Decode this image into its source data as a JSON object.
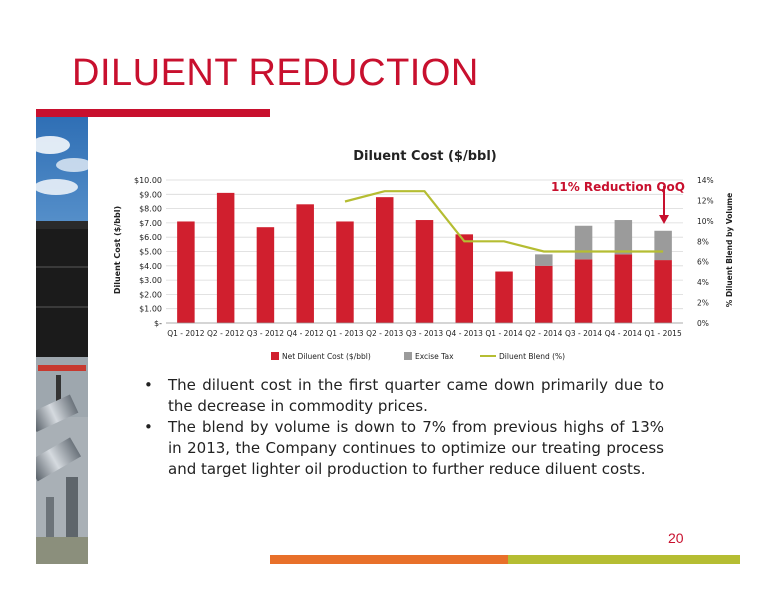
{
  "slide": {
    "title": "DILUENT REDUCTION",
    "page_number": "20",
    "bullets": [
      "The diluent cost in the first quarter came down primarily due to the decrease in commodity prices.",
      "The blend by volume is down to 7% from previous highs of 13% in 2013, the Company continues to optimize our treating process and target lighter oil production to further reduce diluent costs."
    ]
  },
  "colors": {
    "brand_red": "#c8102e",
    "net_bar": "#d01f2e",
    "excise_bar": "#9b9b9b",
    "blend_line": "#b5bd32",
    "footer_orange": "#e8702a",
    "footer_green": "#b5bd32"
  },
  "chart_data": {
    "type": "bar",
    "title": "Diluent Cost ($/bbl)",
    "ylabel": "Diluent Cost ($/bbl)",
    "y2label": "% Diluent Blend by Volume",
    "ylim": [
      0,
      10
    ],
    "y2lim": [
      0,
      14
    ],
    "yticks": [
      "$10.00",
      "$9.00",
      "$8.00",
      "$7.00",
      "$6.00",
      "$5.00",
      "$4.00",
      "$3.00",
      "$2.00",
      "$1.00",
      "$-"
    ],
    "y2ticks": [
      "14%",
      "12%",
      "10%",
      "8%",
      "6%",
      "4%",
      "2%",
      "0%"
    ],
    "categories": [
      "Q1 - 2012",
      "Q2 - 2012",
      "Q3 - 2012",
      "Q4 - 2012",
      "Q1 - 2013",
      "Q2 - 2013",
      "Q3 - 2013",
      "Q4 - 2013",
      "Q1 - 2014",
      "Q2 - 2014",
      "Q3 - 2014",
      "Q4 - 2014",
      "Q1 - 2015"
    ],
    "stacked": true,
    "grid": true,
    "legend_position": "bottom",
    "series": [
      {
        "name": "Net Diluent Cost ($/bbl)",
        "type": "bar",
        "axis": "left",
        "values": [
          7.1,
          9.1,
          6.7,
          8.3,
          7.1,
          8.8,
          7.2,
          6.2,
          3.6,
          4.0,
          4.45,
          4.8,
          4.4
        ]
      },
      {
        "name": "Excise Tax",
        "type": "bar",
        "axis": "left",
        "values": [
          0,
          0,
          0,
          0,
          0,
          0,
          0,
          0,
          0,
          0.8,
          2.35,
          2.4,
          2.05
        ]
      },
      {
        "name": "Diluent Blend (%)",
        "type": "line",
        "axis": "right",
        "values": [
          null,
          null,
          null,
          null,
          11.9,
          12.9,
          12.9,
          8.0,
          8.0,
          7.0,
          7.0,
          7.0,
          7.0
        ]
      }
    ],
    "annotation": {
      "text": "11% Reduction QoQ"
    }
  }
}
